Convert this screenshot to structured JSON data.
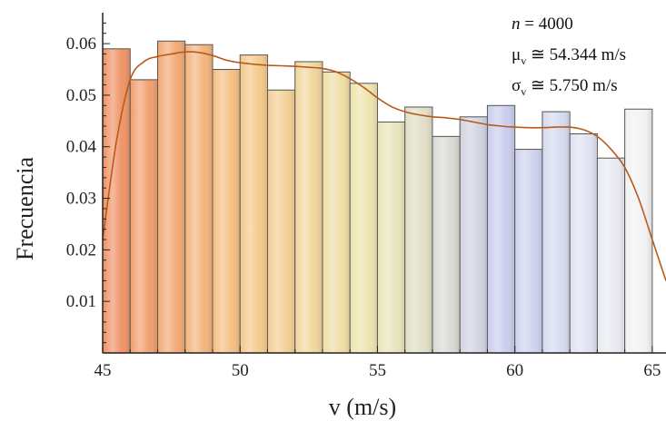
{
  "chart_data": {
    "type": "bar",
    "xlabel": "v (m/s)",
    "ylabel": "Frecuencia",
    "xlim": [
      45,
      65.5
    ],
    "ylim": [
      0,
      0.066
    ],
    "xticks": [
      45,
      50,
      55,
      60,
      65
    ],
    "yticks": [
      0.01,
      0.02,
      0.03,
      0.04,
      0.05,
      0.06
    ],
    "ytick_labels": [
      "0.01",
      "0.02",
      "0.03",
      "0.04",
      "0.05",
      "0.06"
    ],
    "bin_width": 1,
    "bins": [
      {
        "x0": 45,
        "value": 0.059
      },
      {
        "x0": 46,
        "value": 0.053
      },
      {
        "x0": 47,
        "value": 0.0605
      },
      {
        "x0": 48,
        "value": 0.0598
      },
      {
        "x0": 49,
        "value": 0.055
      },
      {
        "x0": 50,
        "value": 0.0578
      },
      {
        "x0": 51,
        "value": 0.051
      },
      {
        "x0": 52,
        "value": 0.0565
      },
      {
        "x0": 53,
        "value": 0.0545
      },
      {
        "x0": 54,
        "value": 0.0523
      },
      {
        "x0": 55,
        "value": 0.0448
      },
      {
        "x0": 56,
        "value": 0.0477
      },
      {
        "x0": 57,
        "value": 0.042
      },
      {
        "x0": 58,
        "value": 0.0458
      },
      {
        "x0": 59,
        "value": 0.048
      },
      {
        "x0": 60,
        "value": 0.0395
      },
      {
        "x0": 61,
        "value": 0.0468
      },
      {
        "x0": 62,
        "value": 0.0425
      },
      {
        "x0": 63,
        "value": 0.0378
      },
      {
        "x0": 64,
        "value": 0.0473
      }
    ],
    "density_curve": {
      "x": [
        45,
        45.5,
        46,
        46.5,
        47,
        47.5,
        48,
        48.5,
        49,
        49.5,
        50,
        50.5,
        51,
        51.5,
        52,
        52.5,
        53,
        53.5,
        54,
        54.5,
        55,
        55.5,
        56,
        56.5,
        57,
        57.5,
        58,
        58.5,
        59,
        59.5,
        60,
        60.5,
        61,
        61.5,
        62,
        62.5,
        63,
        63.5,
        64,
        64.5,
        65,
        65.5
      ],
      "y": [
        0.022,
        0.041,
        0.053,
        0.0565,
        0.0575,
        0.058,
        0.0584,
        0.0583,
        0.0577,
        0.0568,
        0.0563,
        0.056,
        0.0558,
        0.0557,
        0.0556,
        0.0554,
        0.0552,
        0.0545,
        0.0532,
        0.0515,
        0.0495,
        0.0478,
        0.0468,
        0.0462,
        0.0458,
        0.0456,
        0.0453,
        0.0448,
        0.0443,
        0.044,
        0.0438,
        0.0437,
        0.0437,
        0.0438,
        0.0438,
        0.0433,
        0.042,
        0.0395,
        0.036,
        0.03,
        0.022,
        0.014
      ]
    },
    "colors": {
      "bar_gradient": [
        "#f0956a",
        "#f5c88a",
        "#ede8b5",
        "#c8cdef",
        "#f2f2f2"
      ],
      "curve": "#b85a1a",
      "bar_stroke": "#555555",
      "axis": "#222222"
    },
    "annotations": {
      "n_var": "n",
      "n_value": " = 4000",
      "mu_sym": "μ",
      "sigma_sym": "σ",
      "sub": "v",
      "mu_value": " ≅ 54.344 m/s",
      "sigma_value": " ≅ 5.750 m/s"
    }
  }
}
